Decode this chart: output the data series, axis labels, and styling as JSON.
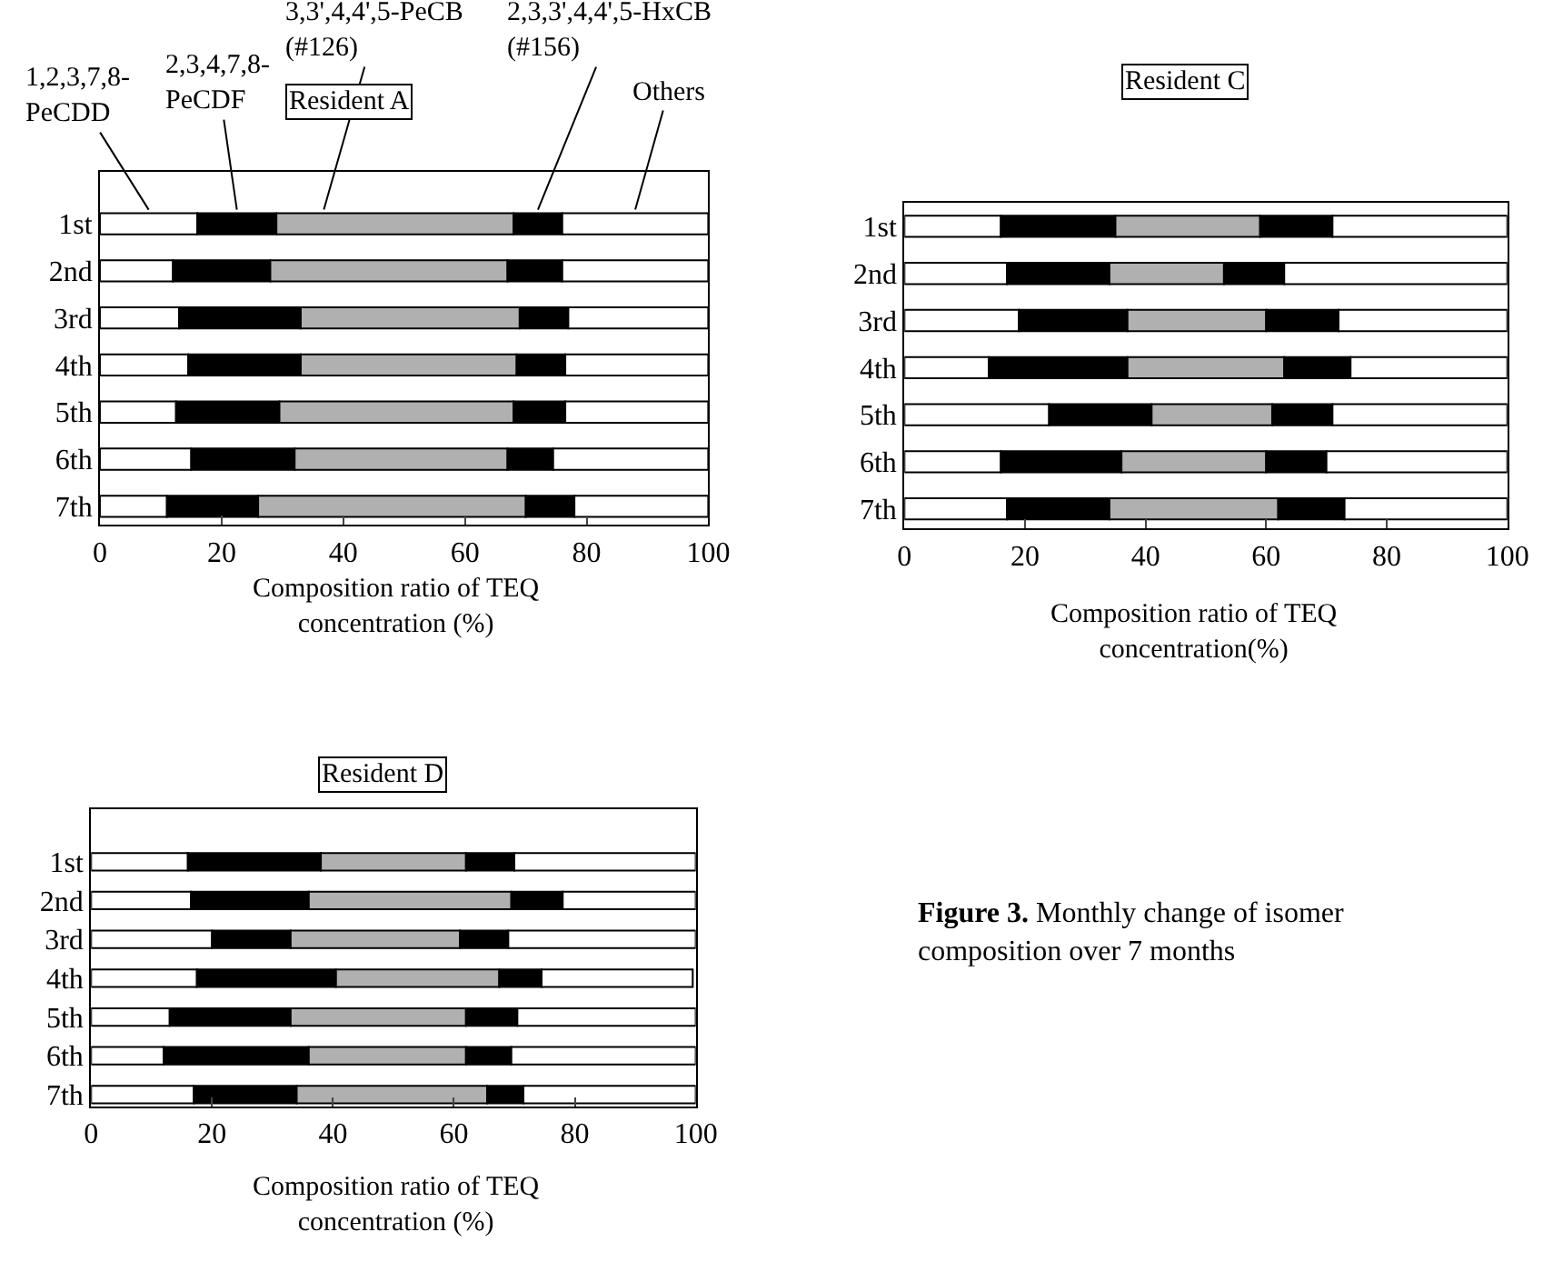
{
  "chart_data": [
    {
      "type": "bar",
      "orientation": "horizontal",
      "stacked": true,
      "title": "Resident A",
      "categories": [
        "1st",
        "2nd",
        "3rd",
        "4th",
        "5th",
        "6th",
        "7th"
      ],
      "series": [
        {
          "name": "1,2,3,7,8-PeCDD",
          "color": "#ffffff",
          "values": [
            16,
            12,
            13,
            14.5,
            12.5,
            15,
            11
          ]
        },
        {
          "name": "2,3,4,7,8-PeCDF",
          "color": "#000000",
          "values": [
            13,
            16,
            20,
            18.5,
            17,
            17,
            15
          ]
        },
        {
          "name": "3,3',4,4',5-PeCB (#126)",
          "color": "#b0b0b0",
          "values": [
            39,
            39,
            36,
            35.5,
            38.5,
            35,
            44
          ]
        },
        {
          "name": "2,3,3',4,4',5-HxCB (#156)",
          "color": "#000000",
          "values": [
            8,
            9,
            8,
            8,
            8.5,
            7.5,
            8
          ]
        },
        {
          "name": "Others",
          "color": "#ffffff",
          "values": [
            24,
            24,
            23,
            23.5,
            23.5,
            25.5,
            22
          ]
        }
      ],
      "xlim": [
        0,
        100
      ],
      "xticks": [
        0,
        20,
        40,
        60,
        80,
        100
      ],
      "xlabel": "Composition ratio of TEQ\nconcentration (%)",
      "grid": false
    },
    {
      "type": "bar",
      "orientation": "horizontal",
      "stacked": true,
      "title": "Resident C",
      "categories": [
        "1st",
        "2nd",
        "3rd",
        "4th",
        "5th",
        "6th",
        "7th"
      ],
      "series": [
        {
          "color": "#ffffff",
          "values": [
            16,
            17,
            19,
            14,
            24,
            16,
            17
          ]
        },
        {
          "color": "#000000",
          "values": [
            19,
            17,
            18,
            23,
            17,
            20,
            17
          ]
        },
        {
          "color": "#b0b0b0",
          "values": [
            24,
            19,
            23,
            26,
            20,
            24,
            28
          ]
        },
        {
          "color": "#000000",
          "values": [
            12,
            10,
            12,
            11,
            10,
            10,
            11
          ]
        },
        {
          "color": "#ffffff",
          "values": [
            29,
            37,
            28,
            26,
            29,
            30,
            27
          ]
        }
      ],
      "xlim": [
        0,
        100
      ],
      "xticks": [
        0,
        20,
        40,
        60,
        80,
        100
      ],
      "xlabel": "Composition ratio of TEQ\nconcentration(%)",
      "grid": false
    },
    {
      "type": "bar",
      "orientation": "horizontal",
      "stacked": true,
      "title": "Resident D",
      "categories": [
        "1st",
        "2nd",
        "3rd",
        "4th",
        "5th",
        "6th",
        "7th"
      ],
      "series": [
        {
          "color": "#ffffff",
          "values": [
            16,
            16.5,
            20,
            17.5,
            13,
            12,
            17
          ]
        },
        {
          "color": "#000000",
          "values": [
            22,
            19.5,
            13,
            23,
            20,
            24,
            17
          ]
        },
        {
          "color": "#b0b0b0",
          "values": [
            24,
            33.5,
            28,
            27,
            29,
            26,
            31.5
          ]
        },
        {
          "color": "#000000",
          "values": [
            8,
            8.5,
            8,
            7,
            8.5,
            7.5,
            6
          ]
        },
        {
          "color": "#ffffff",
          "values": [
            30,
            22,
            31,
            25,
            29.5,
            30.5,
            28.5
          ]
        }
      ],
      "xlim": [
        0,
        100
      ],
      "xticks": [
        0,
        20,
        40,
        60,
        80,
        100
      ],
      "xlabel": "Composition ratio of TEQ\nconcentration (%)",
      "grid": false,
      "annotations": [
        "Figure 3. Monthly change of isomer composition over 7 months"
      ]
    }
  ]
}
